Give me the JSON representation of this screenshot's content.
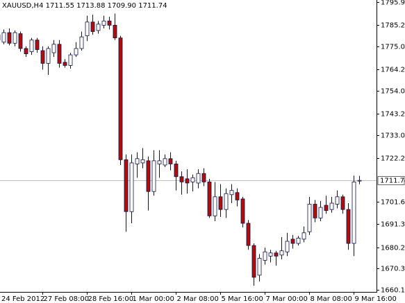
{
  "chart_data": {
    "type": "candlestick",
    "header": "XAUUSD,H4  1711.55 1713.88 1709.90 1711.74",
    "categories": [
      "24 Feb 2012",
      null,
      null,
      null,
      null,
      null,
      null,
      null,
      "27 Feb 08:00",
      null,
      null,
      null,
      null,
      null,
      null,
      null,
      "28 Feb 16:00",
      null,
      null,
      null,
      null,
      null,
      null,
      null,
      "1 Mar 00:00",
      null,
      null,
      null,
      null,
      null,
      null,
      null,
      "2 Mar 08:00",
      null,
      null,
      null,
      null,
      null,
      null,
      null,
      "5 Mar 16:00",
      null,
      null,
      null,
      null,
      null,
      null,
      null,
      "7 Mar 00:00",
      null,
      null,
      null,
      null,
      null,
      null,
      null,
      "8 Mar 08:00",
      null,
      null,
      null,
      null,
      null,
      null,
      null,
      "9 Mar 16:00",
      null
    ],
    "open": [
      1780.5,
      1777,
      1781.5,
      1776.5,
      1781,
      1774,
      1772.5,
      1778,
      1773,
      1767,
      1772,
      1776,
      1767.5,
      1766,
      1771,
      1774,
      1780,
      1786.5,
      1782.5,
      1785,
      1787,
      1785,
      1779,
      1721.5,
      1697,
      1719.5,
      1720,
      1721,
      1706.5,
      1719.5,
      1719,
      1722,
      1719.5,
      1713.5,
      1712.5,
      1711,
      1710.5,
      1715,
      1711,
      1695,
      1704,
      1698,
      1705,
      1706,
      1703,
      1691.5,
      1681,
      1667,
      1674,
      1676,
      1677.5,
      1676.5,
      1678,
      1684,
      1682,
      1684,
      1687.5,
      1700.5,
      1694,
      1700,
      1698,
      1700.5,
      1704,
      1698,
      1682,
      1711.55
    ],
    "high": [
      1782,
      1783,
      1783.5,
      1782.5,
      1782,
      1775,
      1779,
      1779,
      1775,
      1775,
      1778,
      1778,
      1769,
      1772,
      1777,
      1782,
      1789.5,
      1790,
      1787,
      1789.5,
      1789,
      1790.5,
      1780,
      1724,
      1724,
      1725,
      1727,
      1723,
      1726,
      1726,
      1724,
      1725,
      1721,
      1716,
      1717,
      1714.5,
      1717,
      1717.5,
      1712.5,
      1711,
      1710,
      1708,
      1710,
      1708,
      1704,
      1693,
      1682,
      1677,
      1680,
      1679,
      1678.5,
      1685,
      1687,
      1686,
      1685.5,
      1690,
      1704,
      1702.5,
      1702,
      1704.5,
      1704,
      1707,
      1705,
      1701,
      1714,
      1713.88
    ],
    "low": [
      1777,
      1776,
      1775.5,
      1775,
      1772.5,
      1770,
      1771,
      1772,
      1764,
      1761.5,
      1770,
      1765,
      1765,
      1764.5,
      1770,
      1773,
      1777.5,
      1780.5,
      1781,
      1783.5,
      1783,
      1778,
      1719,
      1687.5,
      1691.5,
      1713,
      1717.5,
      1697.5,
      1704.5,
      1713,
      1718,
      1716.5,
      1707,
      1705,
      1705.5,
      1706.5,
      1708,
      1709,
      1694,
      1692.5,
      1694.5,
      1694,
      1701,
      1699.5,
      1689.5,
      1679,
      1662,
      1664,
      1672,
      1673,
      1671.5,
      1674.5,
      1676,
      1679.5,
      1681,
      1682.5,
      1686,
      1692,
      1692.5,
      1696,
      1696.5,
      1698.5,
      1696,
      1679,
      1676,
      1709.9
    ],
    "close": [
      1778,
      1781.5,
      1776.5,
      1781.5,
      1774,
      1771.5,
      1778,
      1773.5,
      1767,
      1774,
      1776,
      1767,
      1766,
      1771,
      1774,
      1779.5,
      1786.5,
      1782,
      1785.5,
      1787,
      1785,
      1779,
      1721.5,
      1697,
      1720,
      1722,
      1721.5,
      1706.5,
      1721,
      1721,
      1722,
      1719.5,
      1713.5,
      1711,
      1710.5,
      1713,
      1715,
      1711,
      1695,
      1704,
      1698,
      1705.5,
      1707,
      1702.5,
      1691.5,
      1681,
      1666,
      1675,
      1678,
      1677.5,
      1676,
      1678.5,
      1683,
      1682,
      1684.5,
      1687,
      1700.5,
      1694,
      1699,
      1697.5,
      1701,
      1704,
      1698,
      1682,
      1711,
      1711.74
    ],
    "up_color": "#ffffff",
    "down_color": "#b00d0d",
    "outline_color": "#101050",
    "current_price": 1711.74,
    "current_price_color": "#c0c0c0",
    "ylim": [
      1659.1,
      1796.9
    ],
    "yticks": [
      {
        "value": 1795.9,
        "label": "1795.90"
      },
      1785.25,
      {
        "value": 1775,
        "label": "1775.00"
      },
      1764.25,
      {
        "value": 1754,
        "label": "1754.00"
      },
      1743.25,
      {
        "value": 1733,
        "label": "1733.00"
      },
      1722.25,
      {
        "value": 1701.6,
        "label": "1701.60"
      },
      {
        "value": 1691.3,
        "label": "1691.30"
      },
      {
        "value": 1680.2,
        "label": "1680.20"
      },
      {
        "value": 1670.3,
        "label": "1670.30"
      },
      {
        "value": 1660.1,
        "label": "1660.10"
      }
    ]
  }
}
